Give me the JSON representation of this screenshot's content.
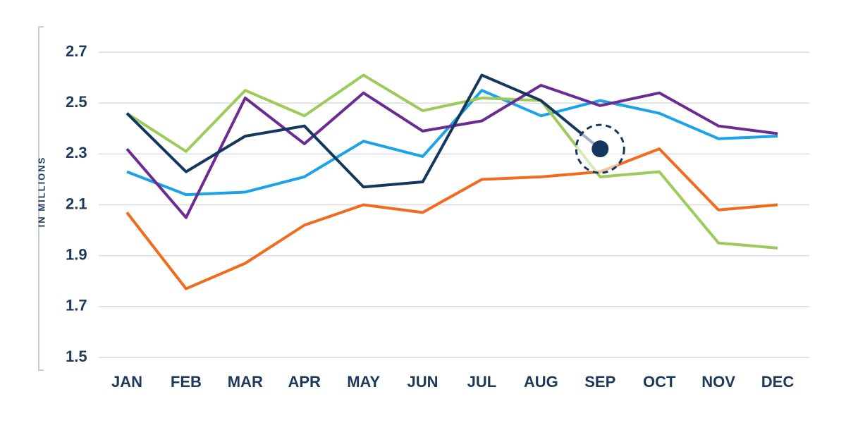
{
  "chart_data": {
    "type": "line",
    "ylabel": "IN MILLIONS",
    "categories": [
      "JAN",
      "FEB",
      "MAR",
      "APR",
      "MAY",
      "JUN",
      "JUL",
      "AUG",
      "SEP",
      "OCT",
      "NOV",
      "DEC"
    ],
    "series": [
      {
        "color": "#f26b1d",
        "values": [
          2.07,
          1.77,
          1.87,
          2.02,
          2.1,
          2.07,
          2.2,
          2.21,
          2.23,
          2.32,
          2.08,
          2.1
        ]
      },
      {
        "color": "#1aa3e8",
        "values": [
          2.23,
          2.14,
          2.15,
          2.21,
          2.35,
          2.29,
          2.55,
          2.45,
          2.51,
          2.46,
          2.36,
          2.37
        ]
      },
      {
        "color": "#9ccb5a",
        "values": [
          2.46,
          2.31,
          2.55,
          2.45,
          2.61,
          2.47,
          2.52,
          2.51,
          2.21,
          2.23,
          1.95,
          1.93
        ]
      },
      {
        "color": "#6a2c91",
        "values": [
          2.32,
          2.05,
          2.52,
          2.34,
          2.54,
          2.39,
          2.43,
          2.57,
          2.49,
          2.54,
          2.41,
          2.38
        ]
      },
      {
        "color": "#14375e",
        "values": [
          2.46,
          2.23,
          2.37,
          2.41,
          2.17,
          2.19,
          2.61,
          2.51,
          2.32,
          null,
          null,
          null
        ]
      }
    ],
    "highlight": {
      "series": 4,
      "index": 8
    },
    "ylim": [
      1.45,
      2.8
    ],
    "yticks": [
      1.5,
      1.7,
      1.9,
      2.1,
      2.3,
      2.5,
      2.7
    ],
    "grid": true
  }
}
